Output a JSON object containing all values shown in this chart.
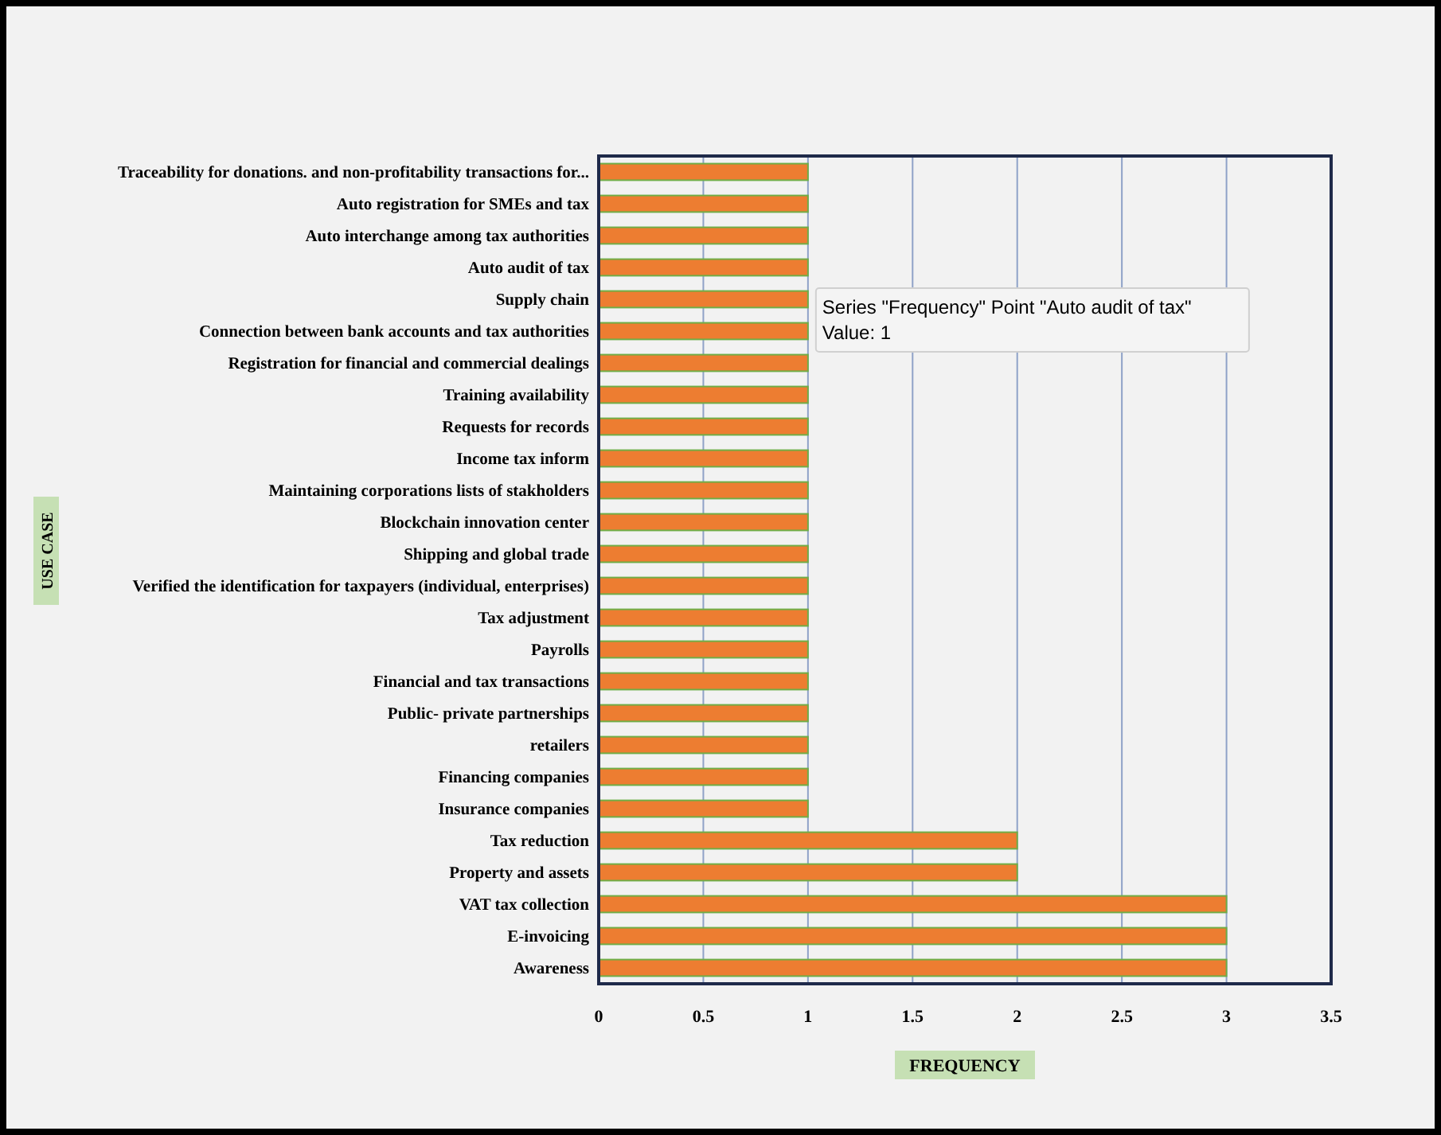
{
  "chart_data": {
    "type": "bar",
    "orientation": "horizontal",
    "xlabel": "FREQUENCY",
    "ylabel": "USE CASE",
    "categories": [
      "Traceability for donations. and non-profitability transactions for...",
      "Auto registration for SMEs and tax",
      "Auto interchange among tax authorities",
      "Auto audit of tax",
      "Supply chain",
      "Connection between bank accounts and tax authorities",
      "Registration for financial and commercial dealings",
      "Training availability",
      "Requests for records",
      "Income tax inform",
      "Maintaining corporations lists of stakholders",
      "Blockchain innovation center",
      "Shipping and global trade",
      "Verified the identification for taxpayers (individual, enterprises)",
      "Tax adjustment",
      "Payrolls",
      "Financial and tax transactions",
      "Public- private partnerships",
      "retailers",
      "Financing companies",
      "Insurance companies",
      "Tax reduction",
      "Property and assets",
      "VAT tax collection",
      "E-invoicing",
      "Awareness"
    ],
    "values": [
      1,
      1,
      1,
      1,
      1,
      1,
      1,
      1,
      1,
      1,
      1,
      1,
      1,
      1,
      1,
      1,
      1,
      1,
      1,
      1,
      1,
      2,
      2,
      3,
      3,
      3
    ],
    "color": "#ed7d31",
    "xlim": [
      0,
      3.5
    ],
    "xticks": [
      0,
      0.5,
      1,
      1.5,
      2,
      2.5,
      3,
      3.5
    ],
    "grid": "x",
    "annotations": [
      "Series \"Frequency\" Point \"Auto audit of tax\"\nValue: 1"
    ]
  }
}
